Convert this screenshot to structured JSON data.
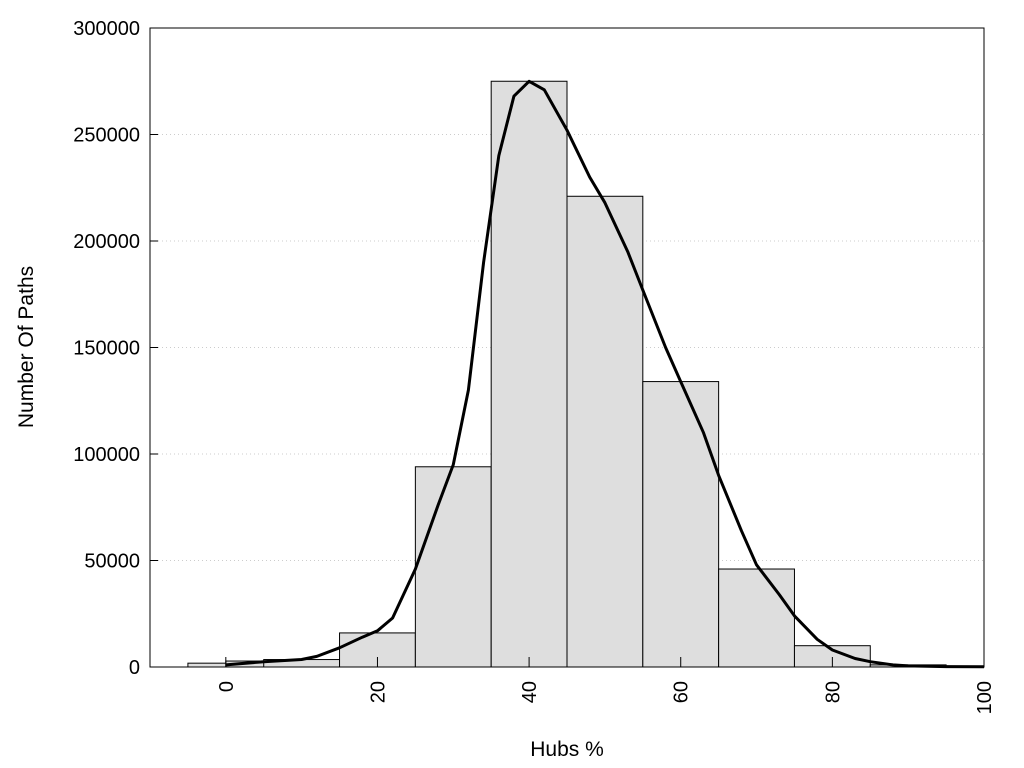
{
  "chart_data": {
    "type": "bar",
    "xlabel": "Hubs %",
    "ylabel": "Number Of Paths",
    "xlim": [
      -10,
      100
    ],
    "ylim": [
      0,
      300000
    ],
    "x_ticks": [
      0,
      20,
      40,
      60,
      80,
      100
    ],
    "y_ticks": [
      0,
      50000,
      100000,
      150000,
      200000,
      250000,
      300000
    ],
    "grid": "horizontal dotted",
    "bin_width": 10,
    "bars": [
      {
        "center": 0,
        "value": 1800
      },
      {
        "center": 5,
        "value": 2800
      },
      {
        "center": 10,
        "value": 3500
      },
      {
        "center": 20,
        "value": 16000
      },
      {
        "center": 30,
        "value": 94000
      },
      {
        "center": 40,
        "value": 275000
      },
      {
        "center": 50,
        "value": 221000
      },
      {
        "center": 60,
        "value": 134000
      },
      {
        "center": 70,
        "value": 46000
      },
      {
        "center": 80,
        "value": 10000
      },
      {
        "center": 90,
        "value": 1000
      }
    ],
    "density_curve": {
      "x": [
        0,
        5,
        10,
        12,
        15,
        18,
        20,
        22,
        25,
        28,
        30,
        32,
        34,
        36,
        38,
        40,
        42,
        45,
        48,
        50,
        53,
        55,
        58,
        60,
        63,
        65,
        68,
        70,
        73,
        75,
        78,
        80,
        83,
        85,
        88,
        90,
        95,
        100
      ],
      "y": [
        1000,
        2500,
        3500,
        5000,
        9000,
        14000,
        17000,
        23000,
        46000,
        76000,
        95000,
        130000,
        190000,
        240000,
        268000,
        275000,
        271000,
        252000,
        230000,
        218000,
        195000,
        177000,
        150000,
        134000,
        110000,
        90000,
        64000,
        48000,
        34000,
        24000,
        13000,
        8000,
        4000,
        2500,
        1000,
        500,
        200,
        100
      ]
    },
    "colors": {
      "bar_fill": "#dedede",
      "bar_stroke": "#000000",
      "curve": "#000000"
    }
  }
}
